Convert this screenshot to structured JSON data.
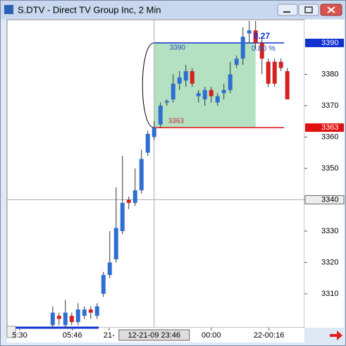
{
  "window": {
    "title": "S.DTV - Direct TV Group Inc, 2 Min"
  },
  "chart_data": {
    "type": "candlestick",
    "up_color": "#2f6fd0",
    "down_color": "#d42020",
    "xlim": [
      -7.2,
      39.7
    ],
    "ylim": [
      3299.2,
      3397.4
    ],
    "yticks": [
      3310,
      3320,
      3330,
      3340,
      3350,
      3360,
      3370,
      3380
    ],
    "xticks": [
      {
        "value": -5.2,
        "label": "5:30"
      },
      {
        "value": 3.1,
        "label": "05:46"
      },
      {
        "value": 8.9,
        "label": "21-"
      },
      {
        "value": 25,
        "label": "00:00"
      },
      {
        "value": 34.1,
        "label": "22-00:16"
      }
    ],
    "open": [
      3300,
      3303,
      3300,
      3303,
      3301,
      3303,
      3305,
      3303,
      3310,
      3316,
      3321,
      3330,
      3340,
      3339,
      3343,
      3355,
      3360,
      3364,
      3371,
      3372,
      3377,
      3378,
      3381,
      3373,
      3372,
      3375,
      3371,
      3374,
      3375,
      3383,
      3385,
      3393,
      3394,
      3390,
      3384,
      3384,
      3384,
      3381
    ],
    "high": [
      3306,
      3304,
      3308,
      3304,
      3307,
      3306,
      3306,
      3307,
      3317,
      3330,
      3344,
      3354,
      3341,
      3350,
      3356,
      3362,
      3365,
      3371,
      3372,
      3380,
      3381,
      3383,
      3382,
      3375,
      3376,
      3376,
      3374,
      3377,
      3384,
      3386,
      3395,
      3397,
      3397,
      3392,
      3385,
      3385,
      3385,
      3382
    ],
    "low": [
      3299,
      3300,
      3299,
      3300,
      3300,
      3302,
      3302,
      3302,
      3309,
      3315,
      3320,
      3329,
      3337,
      3338,
      3342,
      3354,
      3359,
      3363,
      3370,
      3371,
      3375,
      3376,
      3376,
      3371,
      3370,
      3371,
      3370,
      3372,
      3374,
      3382,
      3383,
      3390,
      3388,
      3380,
      3376,
      3376,
      3381,
      3372
    ],
    "close": [
      3304,
      3302,
      3304,
      3301,
      3305,
      3305,
      3304,
      3306,
      3316,
      3320,
      3331,
      3339,
      3339,
      3343,
      3353,
      3361,
      3363,
      3370,
      3371.5,
      3377,
      3379,
      3381,
      3377,
      3374,
      3375,
      3373,
      3373,
      3375,
      3380,
      3385,
      3392,
      3394,
      3390,
      3385,
      3377,
      3377,
      3382,
      3372
    ],
    "box": {
      "x0": 16,
      "x1": 32,
      "top": 3390,
      "bottom": 3363,
      "color": "#a8dcb8",
      "labels": [
        "0.27",
        "0.80 %"
      ]
    },
    "levels": [
      {
        "value": 3390,
        "color": "#1030d0"
      },
      {
        "value": 3363,
        "color": "#e01010"
      }
    ],
    "crosshair": {
      "x": {
        "value": 16,
        "label": "12-21-09 23:46"
      },
      "y": 3340
    }
  }
}
